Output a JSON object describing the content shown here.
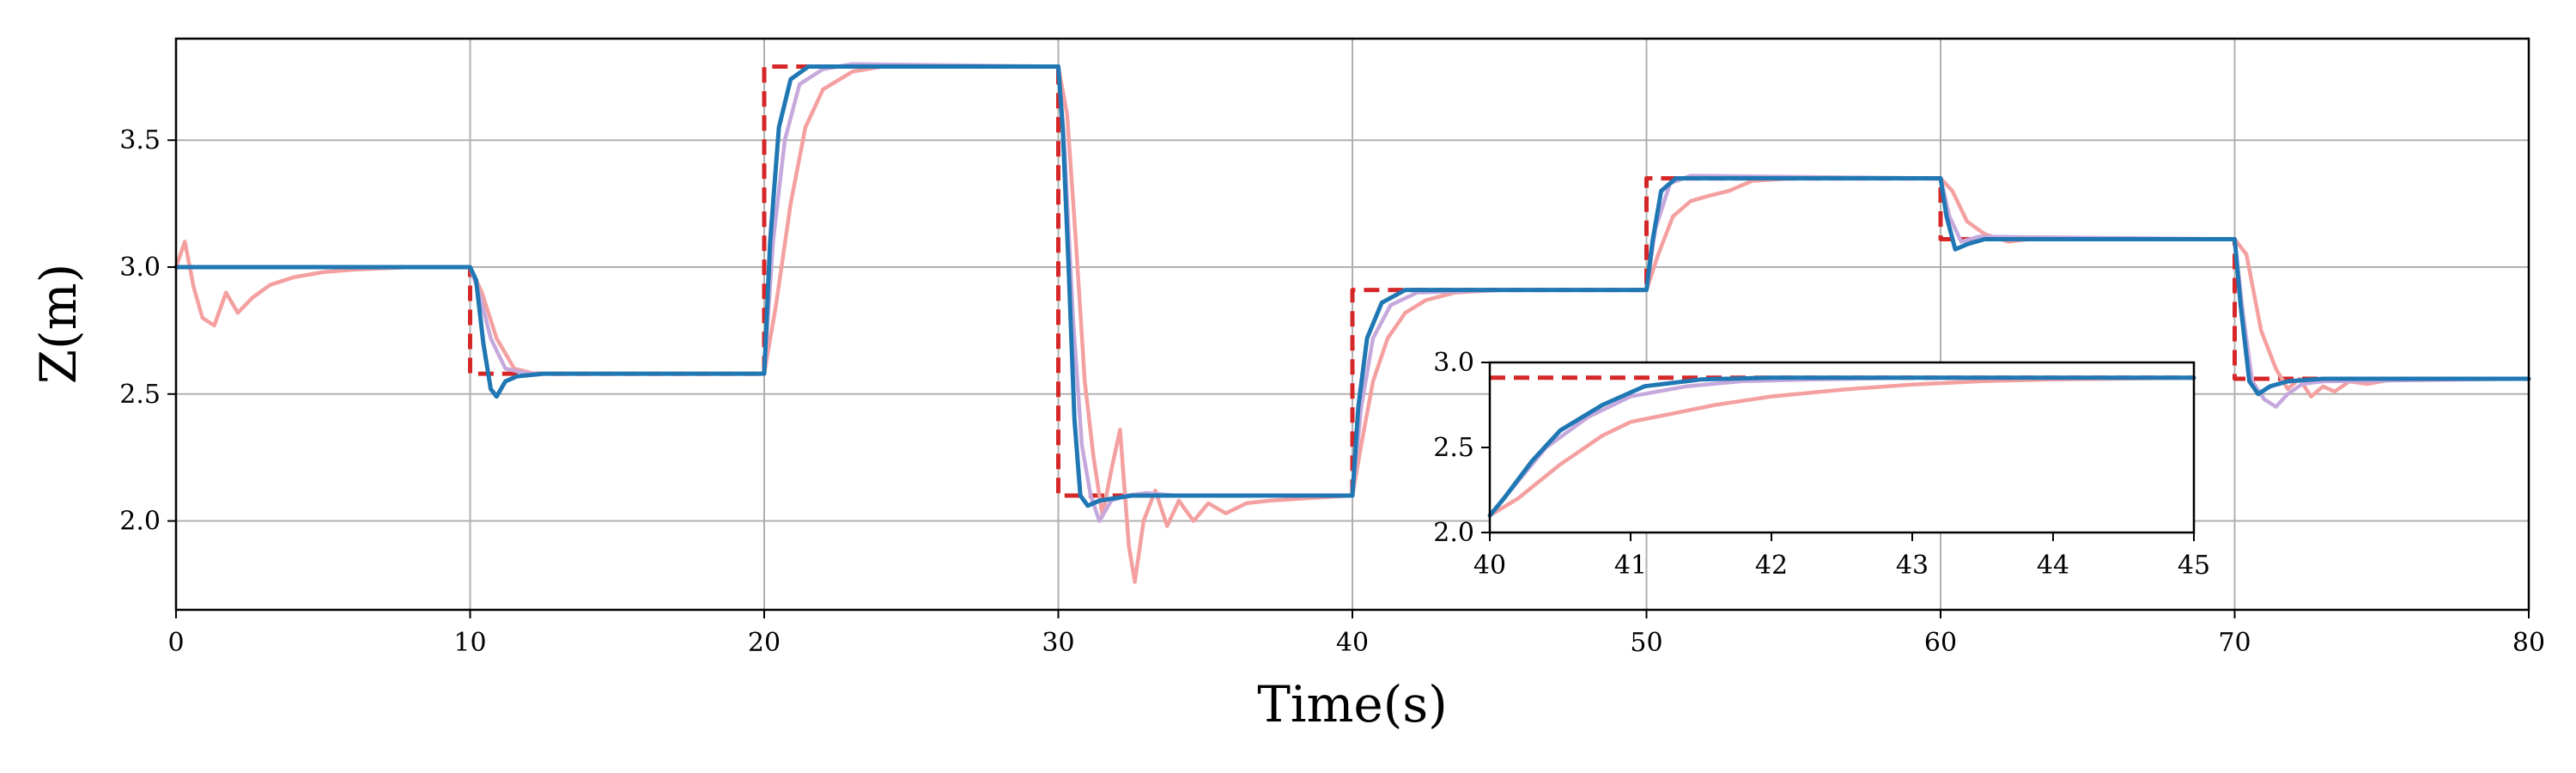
{
  "chart_data": [
    {
      "type": "line",
      "xlabel": "Time(s)",
      "ylabel": "Z(m)",
      "xlim": [
        0,
        80
      ],
      "ylim": [
        1.65,
        3.9
      ],
      "xticks": [
        0,
        10,
        20,
        30,
        40,
        50,
        60,
        70,
        80
      ],
      "yticks": [
        2.0,
        2.5,
        3.0,
        3.5
      ],
      "xtick_labels": [
        "0",
        "10",
        "20",
        "30",
        "40",
        "50",
        "60",
        "70",
        "80"
      ],
      "ytick_labels": [
        "2.0",
        "2.5",
        "3.0",
        "3.5"
      ],
      "grid": true,
      "series": [
        {
          "color": "#d62728",
          "dashed": true,
          "points": [
            [
              0,
              3.0
            ],
            [
              10,
              3.0
            ],
            [
              10,
              2.58
            ],
            [
              20,
              2.58
            ],
            [
              20,
              3.79
            ],
            [
              30,
              3.79
            ],
            [
              30,
              2.1
            ],
            [
              40,
              2.1
            ],
            [
              40,
              2.91
            ],
            [
              50,
              2.91
            ],
            [
              50,
              3.35
            ],
            [
              60,
              3.35
            ],
            [
              60,
              3.11
            ],
            [
              70,
              3.11
            ],
            [
              70,
              2.56
            ],
            [
              80,
              2.56
            ]
          ]
        },
        {
          "color": "#f4a0a0",
          "points": [
            [
              0,
              3.0
            ],
            [
              0.3,
              3.1
            ],
            [
              0.6,
              2.92
            ],
            [
              0.9,
              2.8
            ],
            [
              1.3,
              2.77
            ],
            [
              1.7,
              2.9
            ],
            [
              2.1,
              2.82
            ],
            [
              2.6,
              2.88
            ],
            [
              3.2,
              2.93
            ],
            [
              4,
              2.96
            ],
            [
              5,
              2.98
            ],
            [
              6,
              2.99
            ],
            [
              8,
              3.0
            ],
            [
              10,
              3.0
            ],
            [
              10.4,
              2.9
            ],
            [
              10.9,
              2.72
            ],
            [
              11.5,
              2.6
            ],
            [
              12.2,
              2.58
            ],
            [
              20,
              2.58
            ],
            [
              20.4,
              2.85
            ],
            [
              20.9,
              3.25
            ],
            [
              21.4,
              3.55
            ],
            [
              22,
              3.7
            ],
            [
              23,
              3.77
            ],
            [
              24,
              3.79
            ],
            [
              30,
              3.79
            ],
            [
              30.3,
              3.6
            ],
            [
              30.6,
              3.1
            ],
            [
              30.9,
              2.55
            ],
            [
              31.2,
              2.25
            ],
            [
              31.5,
              2.02
            ],
            [
              31.8,
              2.2
            ],
            [
              32.1,
              2.36
            ],
            [
              32.4,
              1.9
            ],
            [
              32.6,
              1.76
            ],
            [
              32.9,
              2.0
            ],
            [
              33.3,
              2.12
            ],
            [
              33.7,
              1.98
            ],
            [
              34.1,
              2.08
            ],
            [
              34.6,
              2.0
            ],
            [
              35.1,
              2.07
            ],
            [
              35.7,
              2.03
            ],
            [
              36.4,
              2.07
            ],
            [
              37.2,
              2.08
            ],
            [
              38.5,
              2.09
            ],
            [
              40,
              2.1
            ],
            [
              40.3,
              2.3
            ],
            [
              40.7,
              2.55
            ],
            [
              41.2,
              2.72
            ],
            [
              41.8,
              2.82
            ],
            [
              42.5,
              2.87
            ],
            [
              43.5,
              2.9
            ],
            [
              45,
              2.91
            ],
            [
              50,
              2.91
            ],
            [
              50.4,
              3.05
            ],
            [
              50.9,
              3.2
            ],
            [
              51.5,
              3.26
            ],
            [
              52.1,
              3.28
            ],
            [
              52.8,
              3.3
            ],
            [
              53.6,
              3.34
            ],
            [
              55,
              3.35
            ],
            [
              60,
              3.35
            ],
            [
              60.4,
              3.3
            ],
            [
              60.9,
              3.18
            ],
            [
              61.5,
              3.13
            ],
            [
              62.3,
              3.1
            ],
            [
              63,
              3.11
            ],
            [
              70,
              3.11
            ],
            [
              70.4,
              3.05
            ],
            [
              70.9,
              2.75
            ],
            [
              71.4,
              2.6
            ],
            [
              71.8,
              2.52
            ],
            [
              72.2,
              2.56
            ],
            [
              72.6,
              2.49
            ],
            [
              73,
              2.53
            ],
            [
              73.4,
              2.51
            ],
            [
              73.9,
              2.55
            ],
            [
              74.5,
              2.54
            ],
            [
              75.5,
              2.56
            ],
            [
              80,
              2.56
            ]
          ]
        },
        {
          "color": "#c6a9dc",
          "points": [
            [
              0,
              3.0
            ],
            [
              10,
              3.0
            ],
            [
              10.3,
              2.9
            ],
            [
              10.7,
              2.72
            ],
            [
              11.2,
              2.6
            ],
            [
              12,
              2.58
            ],
            [
              20,
              2.58
            ],
            [
              20.3,
              3.1
            ],
            [
              20.7,
              3.5
            ],
            [
              21.2,
              3.72
            ],
            [
              22,
              3.78
            ],
            [
              23,
              3.8
            ],
            [
              30,
              3.79
            ],
            [
              30.2,
              3.5
            ],
            [
              30.5,
              2.8
            ],
            [
              30.8,
              2.3
            ],
            [
              31.1,
              2.1
            ],
            [
              31.4,
              2.0
            ],
            [
              31.8,
              2.08
            ],
            [
              32.3,
              2.1
            ],
            [
              33,
              2.11
            ],
            [
              34,
              2.1
            ],
            [
              40,
              2.1
            ],
            [
              40.3,
              2.45
            ],
            [
              40.7,
              2.72
            ],
            [
              41.3,
              2.85
            ],
            [
              42.2,
              2.9
            ],
            [
              45,
              2.91
            ],
            [
              50,
              2.91
            ],
            [
              50.3,
              3.15
            ],
            [
              50.8,
              3.33
            ],
            [
              51.5,
              3.36
            ],
            [
              60,
              3.35
            ],
            [
              60.3,
              3.2
            ],
            [
              60.7,
              3.1
            ],
            [
              61.3,
              3.12
            ],
            [
              70,
              3.11
            ],
            [
              70.3,
              2.8
            ],
            [
              70.6,
              2.55
            ],
            [
              71.0,
              2.48
            ],
            [
              71.4,
              2.45
            ],
            [
              71.8,
              2.5
            ],
            [
              72.3,
              2.54
            ],
            [
              73,
              2.55
            ],
            [
              80,
              2.56
            ]
          ]
        },
        {
          "color": "#1f77b4",
          "points": [
            [
              0,
              3.0
            ],
            [
              10,
              3.0
            ],
            [
              10.2,
              2.95
            ],
            [
              10.45,
              2.7
            ],
            [
              10.7,
              2.52
            ],
            [
              10.9,
              2.49
            ],
            [
              11.2,
              2.55
            ],
            [
              11.6,
              2.57
            ],
            [
              12.5,
              2.58
            ],
            [
              20,
              2.58
            ],
            [
              20.2,
              3.1
            ],
            [
              20.5,
              3.55
            ],
            [
              20.9,
              3.74
            ],
            [
              21.5,
              3.79
            ],
            [
              30,
              3.79
            ],
            [
              30.15,
              3.55
            ],
            [
              30.35,
              3.0
            ],
            [
              30.55,
              2.4
            ],
            [
              30.75,
              2.1
            ],
            [
              31.0,
              2.06
            ],
            [
              31.4,
              2.08
            ],
            [
              32.5,
              2.1
            ],
            [
              40,
              2.1
            ],
            [
              40.2,
              2.45
            ],
            [
              40.5,
              2.72
            ],
            [
              41.0,
              2.86
            ],
            [
              41.8,
              2.91
            ],
            [
              50,
              2.91
            ],
            [
              50.2,
              3.1
            ],
            [
              50.5,
              3.3
            ],
            [
              51,
              3.35
            ],
            [
              60,
              3.35
            ],
            [
              60.2,
              3.2
            ],
            [
              60.5,
              3.07
            ],
            [
              60.9,
              3.09
            ],
            [
              61.5,
              3.11
            ],
            [
              70,
              3.11
            ],
            [
              70.2,
              2.85
            ],
            [
              70.5,
              2.55
            ],
            [
              70.8,
              2.5
            ],
            [
              71.2,
              2.53
            ],
            [
              71.8,
              2.55
            ],
            [
              73,
              2.56
            ],
            [
              80,
              2.56
            ]
          ]
        }
      ]
    },
    {
      "type": "line",
      "xlim": [
        40,
        45
      ],
      "ylim": [
        2.0,
        3.0
      ],
      "xticks": [
        40,
        41,
        42,
        43,
        44,
        45
      ],
      "yticks": [
        2.0,
        2.5,
        3.0
      ],
      "xtick_labels": [
        "40",
        "41",
        "42",
        "43",
        "44",
        "45"
      ],
      "ytick_labels": [
        "2.0",
        "2.5",
        "3.0"
      ],
      "grid": false,
      "series": [
        {
          "color": "#d62728",
          "dashed": true,
          "points": [
            [
              40,
              2.91
            ],
            [
              45,
              2.91
            ]
          ]
        },
        {
          "color": "#f4a0a0",
          "points": [
            [
              40,
              2.1
            ],
            [
              40.2,
              2.2
            ],
            [
              40.5,
              2.4
            ],
            [
              40.8,
              2.57
            ],
            [
              41.0,
              2.65
            ],
            [
              41.3,
              2.7
            ],
            [
              41.6,
              2.75
            ],
            [
              42,
              2.8
            ],
            [
              42.5,
              2.84
            ],
            [
              43,
              2.87
            ],
            [
              43.5,
              2.89
            ],
            [
              44,
              2.9
            ],
            [
              45,
              2.91
            ]
          ]
        },
        {
          "color": "#c6a9dc",
          "points": [
            [
              40,
              2.1
            ],
            [
              40.15,
              2.25
            ],
            [
              40.4,
              2.5
            ],
            [
              40.7,
              2.68
            ],
            [
              41.0,
              2.8
            ],
            [
              41.4,
              2.86
            ],
            [
              41.8,
              2.89
            ],
            [
              42.3,
              2.9
            ],
            [
              43,
              2.91
            ],
            [
              45,
              2.91
            ]
          ]
        },
        {
          "color": "#1f77b4",
          "points": [
            [
              40,
              2.1
            ],
            [
              40.1,
              2.2
            ],
            [
              40.3,
              2.42
            ],
            [
              40.5,
              2.6
            ],
            [
              40.8,
              2.75
            ],
            [
              41.1,
              2.86
            ],
            [
              41.5,
              2.9
            ],
            [
              42,
              2.91
            ],
            [
              45,
              2.91
            ]
          ]
        }
      ]
    }
  ]
}
